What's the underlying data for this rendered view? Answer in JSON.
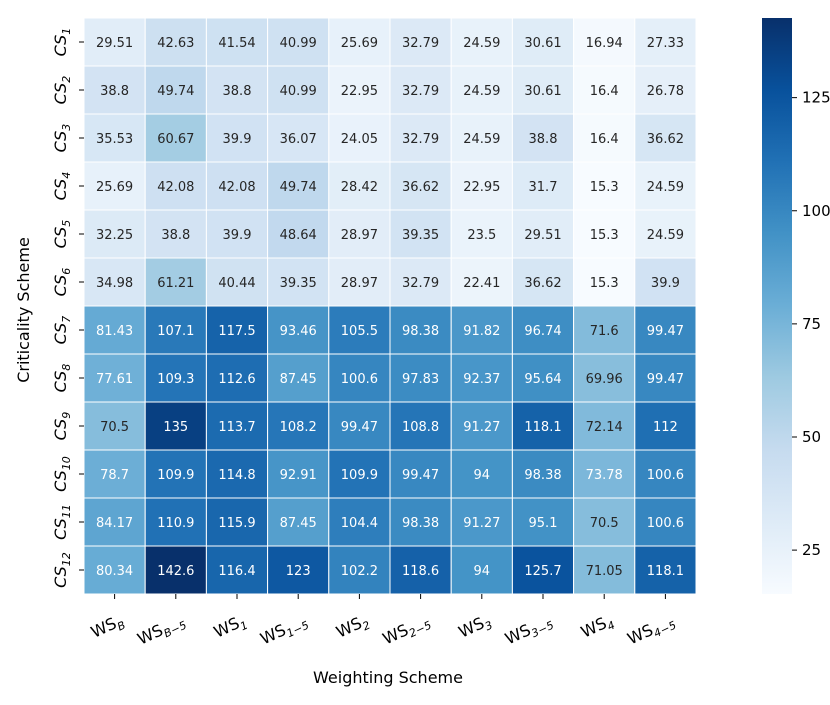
{
  "chart_data": {
    "type": "heatmap",
    "xlabel": "Weighting Scheme",
    "ylabel": "Criticality Scheme",
    "x_ticks": [
      {
        "base": "WS",
        "sub": "B"
      },
      {
        "base": "WS",
        "sub": "B−5"
      },
      {
        "base": "WS",
        "sub": "1"
      },
      {
        "base": "WS",
        "sub": "1−5"
      },
      {
        "base": "WS",
        "sub": "2"
      },
      {
        "base": "WS",
        "sub": "2−5"
      },
      {
        "base": "WS",
        "sub": "3"
      },
      {
        "base": "WS",
        "sub": "3−5"
      },
      {
        "base": "WS",
        "sub": "4"
      },
      {
        "base": "WS",
        "sub": "4−5"
      }
    ],
    "y_ticks": [
      {
        "base": "CS",
        "sub": "1"
      },
      {
        "base": "CS",
        "sub": "2"
      },
      {
        "base": "CS",
        "sub": "3"
      },
      {
        "base": "CS",
        "sub": "4"
      },
      {
        "base": "CS",
        "sub": "5"
      },
      {
        "base": "CS",
        "sub": "6"
      },
      {
        "base": "CS",
        "sub": "7"
      },
      {
        "base": "CS",
        "sub": "8"
      },
      {
        "base": "CS",
        "sub": "9"
      },
      {
        "base": "CS",
        "sub": "10"
      },
      {
        "base": "CS",
        "sub": "11"
      },
      {
        "base": "CS",
        "sub": "12"
      }
    ],
    "values": [
      [
        29.51,
        42.63,
        41.54,
        40.99,
        25.69,
        32.79,
        24.59,
        30.61,
        16.94,
        27.33
      ],
      [
        38.8,
        49.74,
        38.8,
        40.99,
        22.95,
        32.79,
        24.59,
        30.61,
        16.4,
        26.78
      ],
      [
        35.53,
        60.67,
        39.9,
        36.07,
        24.05,
        32.79,
        24.59,
        38.8,
        16.4,
        36.62
      ],
      [
        25.69,
        42.08,
        42.08,
        49.74,
        28.42,
        36.62,
        22.95,
        31.7,
        15.3,
        24.59
      ],
      [
        32.25,
        38.8,
        39.9,
        48.64,
        28.97,
        39.35,
        23.5,
        29.51,
        15.3,
        24.59
      ],
      [
        34.98,
        61.21,
        40.44,
        39.35,
        28.97,
        32.79,
        22.41,
        36.62,
        15.3,
        39.9
      ],
      [
        81.43,
        107.1,
        117.5,
        93.46,
        105.5,
        98.38,
        91.82,
        96.74,
        71.6,
        99.47
      ],
      [
        77.61,
        109.3,
        112.6,
        87.45,
        100.6,
        97.83,
        92.37,
        95.64,
        69.96,
        99.47
      ],
      [
        70.5,
        135,
        113.7,
        108.2,
        99.47,
        108.8,
        91.27,
        118.1,
        72.14,
        112
      ],
      [
        78.7,
        109.9,
        114.8,
        92.91,
        109.9,
        99.47,
        94,
        98.38,
        73.78,
        100.6
      ],
      [
        84.17,
        110.9,
        115.9,
        87.45,
        104.4,
        98.38,
        91.27,
        95.1,
        70.5,
        100.6
      ],
      [
        80.34,
        142.6,
        116.4,
        123,
        102.2,
        118.6,
        94,
        125.7,
        71.05,
        118.1
      ]
    ],
    "colormap": "Blues",
    "color_range": [
      15.3,
      142.6
    ],
    "colorbar_ticks": [
      25,
      50,
      75,
      100,
      125
    ],
    "annotated": true,
    "grid": false
  }
}
